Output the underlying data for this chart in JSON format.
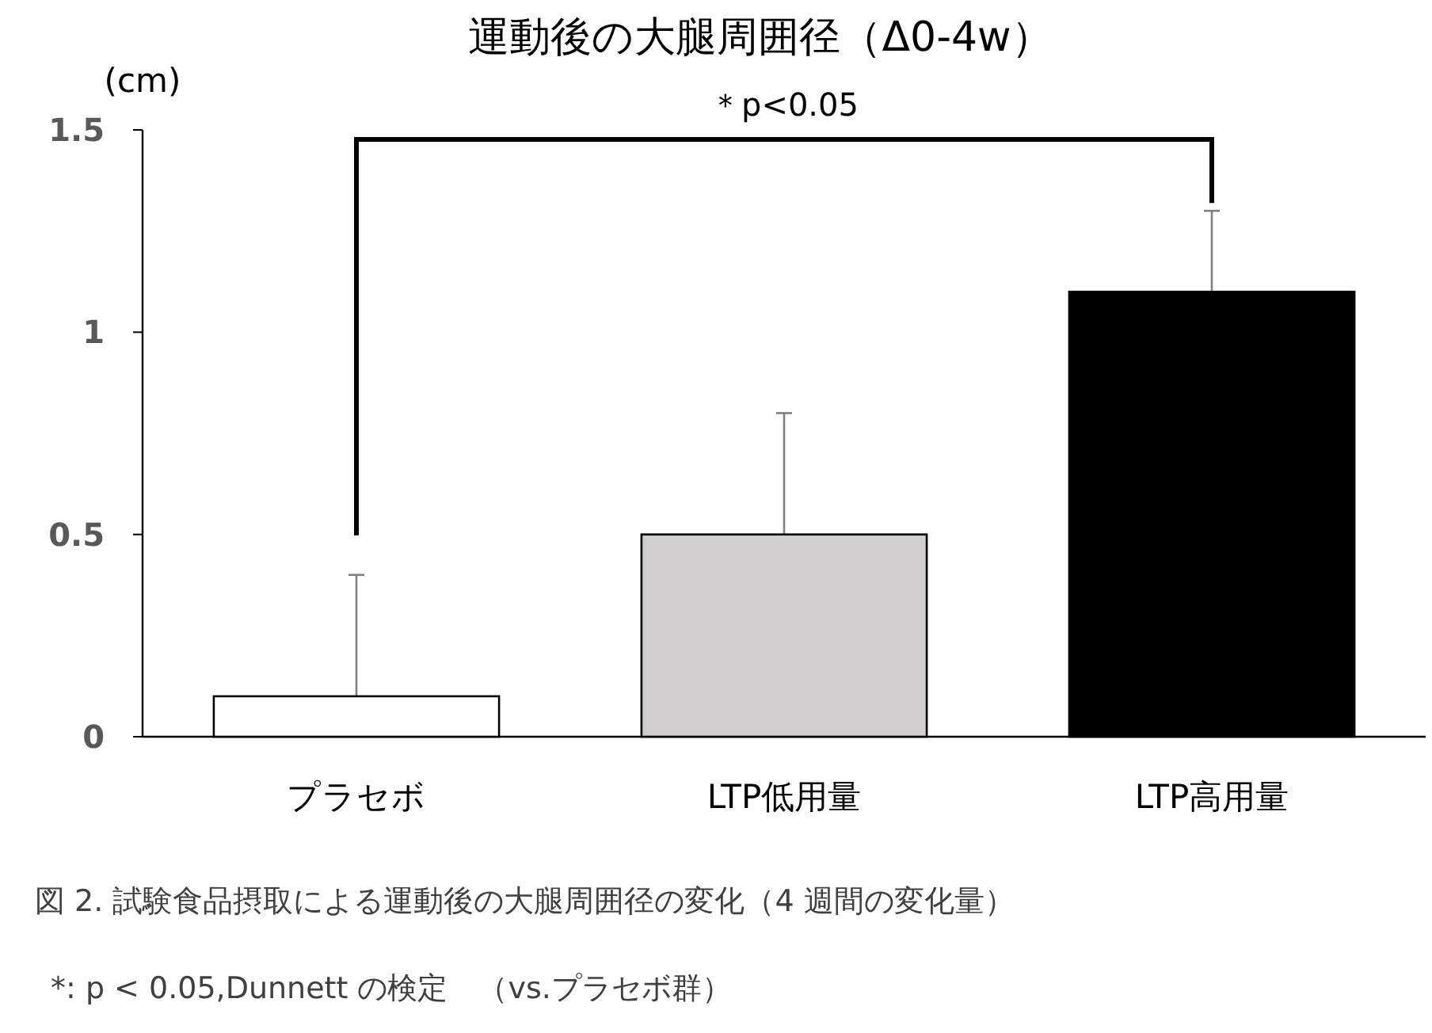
{
  "chart_data": {
    "type": "bar",
    "title": "運動後の大腿周囲径（Δ0-4w）",
    "ylabel": "(cm)",
    "categories": [
      "プラセボ",
      "LTP低用量",
      "LTP高用量"
    ],
    "values": [
      0.1,
      0.5,
      1.1
    ],
    "colors": [
      "#ffffff",
      "#d0cecf",
      "#000000"
    ],
    "errors": [
      [
        0.1,
        0.4
      ],
      [
        0.5,
        0.8
      ],
      [
        1.1,
        1.3
      ]
    ],
    "ylim": [
      0,
      1.5
    ],
    "yticks": [
      0,
      0.5,
      1,
      1.5
    ],
    "grid": false,
    "annotations": [
      "＊p<0.05",
      "図 2. 試験食品摂取による運動後の大腿周囲径の変化（4 週間の変化量）",
      "*: p < 0.05,Dunnett の検定　（vs.プラセボ群）"
    ]
  }
}
